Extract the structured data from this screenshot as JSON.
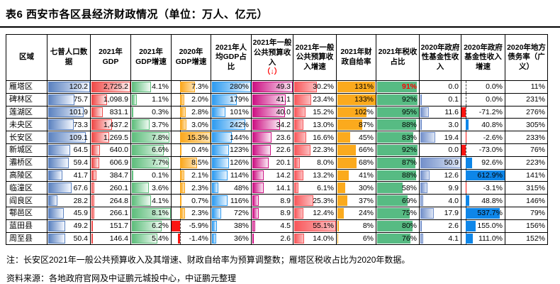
{
  "title": "表6 西安市各区县经济财政情况（单位：万人、亿元）",
  "notes": {
    "note1": "注：长安区2021年一般公共预算收入及其增速、财政自给率为预算调整数；雁塔区税收占比为2020年数据。",
    "source": "资料来源：各地政府官网及中证鹏元城投中心，中证鹏元整理"
  },
  "colors": {
    "pop": "#5b82c0",
    "gdp": "#ef4a48",
    "g21": "#5fbe7d",
    "g20": "#fba81d",
    "g20_neg": "#fb1511",
    "pcgdp": "#2e9bf0",
    "rev": "#cc1183",
    "revg": "#f8585b",
    "self": "#fbaa1d",
    "tax": "#57bb83",
    "fund": "#7390ca",
    "fundg": "#0e86e8",
    "fundg_neg": "#fb1511",
    "header_arrow": "#ff0000",
    "tax_special": "#ff0000"
  },
  "table": {
    "columns": [
      {
        "key": "region",
        "label": "区域",
        "type": "text",
        "width": 58
      },
      {
        "key": "pop",
        "label": "七普人口数据",
        "type": "bar",
        "style": "pop",
        "max": 120.2,
        "width": 61
      },
      {
        "key": "gdp",
        "label": "2021年GDP",
        "type": "bar",
        "style": "gdp",
        "max": 2725.2,
        "width": 57
      },
      {
        "key": "g21",
        "label": "2021年GDP增速",
        "type": "bar",
        "style": "g21",
        "max": 8.1,
        "width": 57
      },
      {
        "key": "g20",
        "label": "2020年GDP增速",
        "type": "divbar",
        "style": "g20",
        "min": -5.9,
        "max": 15.3,
        "axis": 22,
        "width": 56
      },
      {
        "key": "pcgdp",
        "label": "2021年人均GDP占比",
        "type": "bar",
        "style": "pcgdp",
        "max": 280,
        "width": 57
      },
      {
        "key": "rev",
        "label": "2021年一般公共预算收入",
        "suffix": "（↓）",
        "type": "bar",
        "style": "rev",
        "max": 49.3,
        "width": 59
      },
      {
        "key": "revg",
        "label": "2021年一般公共预算收入增速",
        "type": "bar",
        "style": "revg",
        "max": 55.1,
        "width": 61
      },
      {
        "key": "self",
        "label": "2021年财政自给率",
        "type": "bar",
        "style": "self",
        "max": 133,
        "width": 56
      },
      {
        "key": "tax",
        "label": "2021年税收占比",
        "type": "bar",
        "style": "tax",
        "max": 95,
        "width": 61
      },
      {
        "key": "fund",
        "label": "2020年政府性基金性收入",
        "type": "bar",
        "style": "fund",
        "max": 50.9,
        "width": 59
      },
      {
        "key": "fundg",
        "label": "2020年政府基金性收入增速",
        "type": "divbar",
        "style": "fundg",
        "min": -73.0,
        "max": 612.9,
        "axis": 10.6,
        "width": 62
      },
      {
        "key": "debt",
        "label": "2020年地方债务率（广义）",
        "type": "bar",
        "style": "debt",
        "max": 315,
        "width": 60
      }
    ],
    "rows": [
      {
        "region": "雁塔区",
        "values": [
          "120.2",
          "2,725.2",
          "4.1%",
          "7.3%",
          "280%",
          "49.3",
          "30.2%",
          "131%",
          "91%",
          "0.0",
          "0.0%",
          "11%"
        ],
        "red_values": [
          8
        ]
      },
      {
        "region": "碑林区",
        "values": [
          "75.7",
          "1,098.9",
          "1.1%",
          "2.0%",
          "179%",
          "41.1",
          "23.4%",
          "133%",
          "92%",
          "0.1",
          "0.0%",
          "231%"
        ]
      },
      {
        "region": "莲湖区",
        "values": [
          "101.9",
          "831.1",
          "0.3%",
          "2.8%",
          "101%",
          "40.0",
          "15.2%",
          "102%",
          "95%",
          "11.6",
          "-71.2%",
          "276%"
        ]
      },
      {
        "region": "未央区",
        "values": [
          "73.3",
          "1,437.2",
          "3.7%",
          "3.0%",
          "242%",
          "34.2",
          "13.0%",
          "87%",
          "88%",
          "3.0",
          "40.8%",
          "305%"
        ]
      },
      {
        "region": "长安区",
        "values": [
          "109.1",
          "1,269.5",
          "7.8%",
          "15.3%",
          "144%",
          "23.6",
          "16.6%",
          "45%",
          "83%",
          "19.4",
          "-2.6%",
          "233%"
        ]
      },
      {
        "region": "新城区",
        "values": [
          "64.5",
          "640.0",
          "6.6%",
          "0.4%",
          "123%",
          "22.6",
          "22.3%",
          "66%",
          "92%",
          "0.0",
          "-73.0%",
          "76%"
        ]
      },
      {
        "region": "灞桥区",
        "values": [
          "59.4",
          "606.9",
          "7.7%",
          "8.5%",
          "126%",
          "20.1",
          "8.0%",
          "68%",
          "87%",
          "50.9",
          "92.6%",
          "223%"
        ]
      },
      {
        "region": "高陵区",
        "values": [
          "41.7",
          "384.7",
          "0.1%",
          "2.1%",
          "114%",
          "14.2",
          "13.2%",
          "41%",
          "88%",
          "12.6",
          "612.9%",
          "141%"
        ]
      },
      {
        "region": "临潼区",
        "values": [
          "67.6",
          "260.1",
          "3.6%",
          "2.3%",
          "48%",
          "14.1",
          "6.1%",
          "30%",
          "58%",
          "9.9",
          "-3.1%",
          "315%"
        ]
      },
      {
        "region": "阎良区",
        "values": [
          "28.2",
          "264.8",
          "4.1%",
          "0.7%",
          "116%",
          "8.9",
          "25.3%",
          "37%",
          "69%",
          "4.0",
          "48.8%",
          "146%"
        ]
      },
      {
        "region": "鄠邑区",
        "values": [
          "45.9",
          "266.1",
          "8.1%",
          "2.3%",
          "72%",
          "8.9",
          "12.4%",
          "24%",
          "75%",
          "17.9",
          "537.7%",
          "79%"
        ]
      },
      {
        "region": "蓝田县",
        "values": [
          "49.2",
          "151.7",
          "6.2%",
          "-5.9%",
          "38%",
          "4.5",
          "55.1%",
          "8%",
          "80%",
          "2.6",
          "155.0%",
          "156%"
        ]
      },
      {
        "region": "周至县",
        "values": [
          "50.4",
          "146.4",
          "5.4%",
          "-1.4%",
          "36%",
          "2.6",
          "14.0%",
          "6%",
          "76%",
          "4.1",
          "111.0%",
          "152%"
        ]
      }
    ]
  }
}
